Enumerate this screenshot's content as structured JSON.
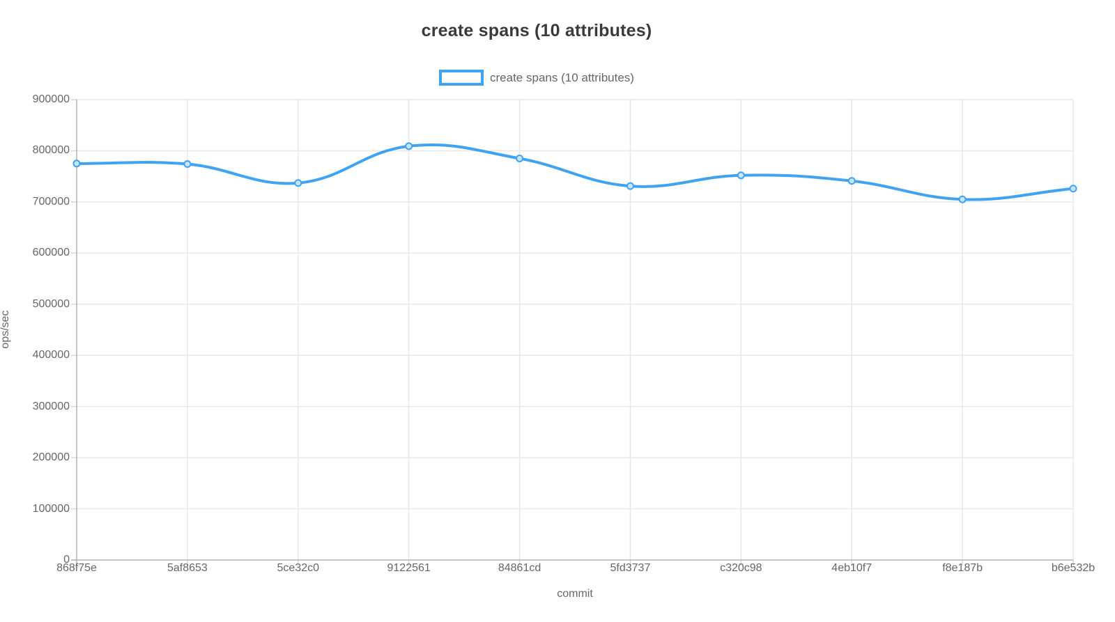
{
  "title": "create spans (10 attributes)",
  "legend": {
    "label": "create spans (10 attributes)",
    "position": "top"
  },
  "chart_data": {
    "type": "line",
    "title": "create spans (10 attributes)",
    "xlabel": "commit",
    "ylabel": "ops/sec",
    "categories": [
      "868f75e",
      "5af8653",
      "5ce32c0",
      "9122561",
      "84861cd",
      "5fd3737",
      "c320c98",
      "4eb10f7",
      "f8e187b",
      "b6e532b"
    ],
    "series": [
      {
        "name": "create spans (10 attributes)",
        "values": [
          775000,
          774000,
          737000,
          809000,
          785000,
          731000,
          752000,
          741000,
          705000,
          726000
        ]
      }
    ],
    "ylim": [
      0,
      900000
    ],
    "y_ticks": [
      0,
      100000,
      200000,
      300000,
      400000,
      500000,
      600000,
      700000,
      800000,
      900000
    ],
    "grid": true,
    "smooth": true,
    "legend_position": "top",
    "colors": {
      "line": "#3fa3f4",
      "point_fill": "#c9e4fb",
      "gridline": "#e8e8e8",
      "axis_line": "#b3b3b3",
      "tick_mark": "#d6d6d6",
      "title_text": "#3a3a3a",
      "label_text": "#666666",
      "background": "#ffffff"
    }
  }
}
